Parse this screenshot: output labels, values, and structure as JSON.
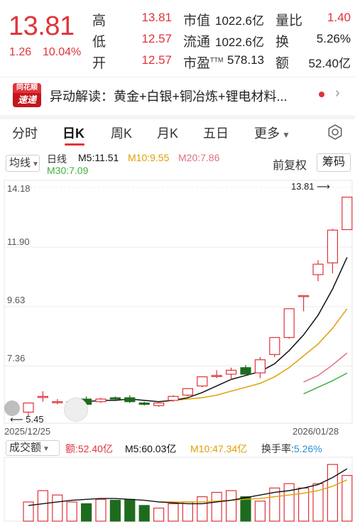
{
  "quote": {
    "price": "13.81",
    "change": "1.26",
    "change_pct": "10.04%",
    "high_label": "高",
    "high": "13.81",
    "low_label": "低",
    "low": "12.57",
    "open_label": "开",
    "open": "12.57",
    "mcap_label": "市值",
    "mcap": "1022.6亿",
    "float_label": "流通",
    "float": "1022.6亿",
    "pe_label": "市盈",
    "pe_sup": "TTM",
    "pe": "578.13",
    "volratio_label": "量比",
    "volratio": "1.40",
    "turnover_label": "换",
    "turnover": "5.26%",
    "amount_label": "额",
    "amount": "52.40亿"
  },
  "news": {
    "badge_top": "同花顺",
    "badge_bottom": "速递",
    "text": "异动解读：黄金+白银+铜冶炼+锂电材料..."
  },
  "tabs": [
    {
      "label": "分时"
    },
    {
      "label": "日K"
    },
    {
      "label": "周K"
    },
    {
      "label": "月K"
    },
    {
      "label": "五日"
    },
    {
      "label": "更多"
    }
  ],
  "indicators": {
    "ma_button": "均线",
    "period": "日线",
    "m5": "M5:11.51",
    "m10": "M10:9.55",
    "m20": "M20:7.86",
    "m30": "M30:7.09",
    "adjust": "前复权",
    "chips": "筹码"
  },
  "colors": {
    "up": "#e0333a",
    "down": "#1e6b1e",
    "m5": "#111111",
    "m10": "#e0a000",
    "m20": "#e07080",
    "m30": "#40b040"
  },
  "price_axis": [
    "14.18",
    "11.90",
    "9.63",
    "7.36"
  ],
  "date_start": "2025/12/25",
  "date_end": "2026/01/28",
  "annotation_high": "13.81",
  "annotation_low": "5.45",
  "volume": {
    "button": "成交额",
    "amount": "额:52.40亿",
    "m5": "M5:60.03亿",
    "m10": "M10:47.34亿",
    "turnover_label": "换手率:",
    "turnover": "5.26%"
  },
  "chart_data": {
    "type": "candlestick",
    "price_range": [
      5.45,
      14.18
    ],
    "candles": [
      {
        "o": 5.6,
        "h": 5.95,
        "l": 5.45,
        "c": 5.95
      },
      {
        "o": 6.2,
        "h": 6.4,
        "l": 6.0,
        "c": 6.2
      },
      {
        "o": 6.0,
        "h": 6.1,
        "l": 5.9,
        "c": 6.0
      },
      {
        "o": 5.75,
        "h": 6.0,
        "l": 5.7,
        "c": 6.0
      },
      {
        "o": 6.1,
        "h": 6.2,
        "l": 5.85,
        "c": 5.9
      },
      {
        "o": 6.0,
        "h": 6.15,
        "l": 5.95,
        "c": 6.1
      },
      {
        "o": 6.15,
        "h": 6.2,
        "l": 6.05,
        "c": 6.1
      },
      {
        "o": 6.15,
        "h": 6.25,
        "l": 5.95,
        "c": 6.0
      },
      {
        "o": 5.95,
        "h": 6.0,
        "l": 5.85,
        "c": 5.9
      },
      {
        "o": 5.85,
        "h": 5.95,
        "l": 5.8,
        "c": 5.95
      },
      {
        "o": 6.05,
        "h": 6.25,
        "l": 6.0,
        "c": 6.2
      },
      {
        "o": 6.25,
        "h": 6.5,
        "l": 6.2,
        "c": 6.5
      },
      {
        "o": 6.6,
        "h": 6.95,
        "l": 6.55,
        "c": 6.95
      },
      {
        "o": 7.0,
        "h": 7.2,
        "l": 6.9,
        "c": 7.0
      },
      {
        "o": 7.05,
        "h": 7.3,
        "l": 6.85,
        "c": 7.2
      },
      {
        "o": 7.3,
        "h": 7.4,
        "l": 7.05,
        "c": 7.05
      },
      {
        "o": 7.1,
        "h": 7.7,
        "l": 6.9,
        "c": 7.6
      },
      {
        "o": 7.8,
        "h": 8.45,
        "l": 7.7,
        "c": 8.45
      },
      {
        "o": 8.45,
        "h": 9.55,
        "l": 8.4,
        "c": 9.55
      },
      {
        "o": 10.05,
        "h": 10.05,
        "l": 9.45,
        "c": 10.05
      },
      {
        "o": 10.85,
        "h": 11.4,
        "l": 10.6,
        "c": 11.25
      },
      {
        "o": 11.3,
        "h": 12.6,
        "l": 10.9,
        "c": 12.55
      },
      {
        "o": 12.57,
        "h": 13.81,
        "l": 12.57,
        "c": 13.81
      }
    ],
    "ma5": [
      null,
      null,
      null,
      null,
      6.0,
      6.05,
      6.05,
      6.1,
      6.05,
      6.0,
      6.05,
      6.15,
      6.35,
      6.6,
      6.85,
      7.0,
      7.15,
      7.45,
      7.95,
      8.55,
      9.3,
      10.3,
      11.51
    ],
    "ma10": [
      null,
      null,
      null,
      null,
      null,
      null,
      null,
      null,
      null,
      6.0,
      6.05,
      6.1,
      6.15,
      6.25,
      6.4,
      6.55,
      6.7,
      6.95,
      7.3,
      7.75,
      8.2,
      8.8,
      9.55
    ],
    "ma20": [
      null,
      null,
      null,
      null,
      null,
      null,
      null,
      null,
      null,
      null,
      null,
      null,
      null,
      null,
      null,
      null,
      null,
      null,
      null,
      6.75,
      7.0,
      7.4,
      7.86
    ],
    "ma30": [
      null,
      null,
      null,
      null,
      null,
      null,
      null,
      null,
      null,
      null,
      null,
      null,
      null,
      null,
      null,
      null,
      null,
      null,
      null,
      6.3,
      6.55,
      6.8,
      7.09
    ],
    "volume_values": [
      22,
      35,
      30,
      22,
      20,
      25,
      24,
      25,
      18,
      15,
      20,
      22,
      28,
      33,
      35,
      28,
      23,
      38,
      43,
      38,
      43,
      65,
      52.4
    ],
    "volume_ma5": [
      18,
      20,
      22,
      24,
      25,
      26,
      26,
      25,
      24,
      22,
      21,
      20,
      20,
      22,
      24,
      27,
      30,
      33,
      35,
      38,
      42,
      50,
      60.03
    ],
    "volume_ma10": [
      null,
      null,
      null,
      null,
      null,
      null,
      null,
      null,
      null,
      22,
      22,
      22,
      22,
      23,
      24,
      25,
      26,
      28,
      30,
      32,
      35,
      40,
      47.34
    ]
  }
}
